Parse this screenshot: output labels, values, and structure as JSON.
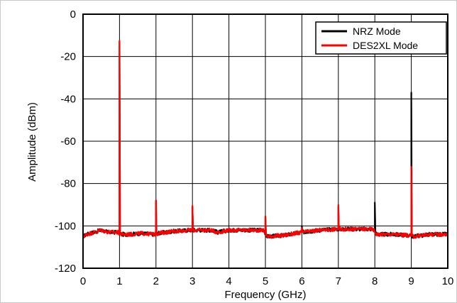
{
  "chart_data": {
    "type": "line",
    "xlabel": "Frequency (GHz)",
    "ylabel": "Amplitude (dBm)",
    "xlim": [
      0,
      10
    ],
    "ylim": [
      -120,
      0
    ],
    "x_ticks": [
      "0",
      "1",
      "2",
      "3",
      "4",
      "5",
      "6",
      "7",
      "8",
      "9",
      "10"
    ],
    "y_ticks": [
      "0",
      "-20",
      "-40",
      "-60",
      "-80",
      "-100",
      "-120"
    ],
    "grid": true,
    "legend_position": "top-right",
    "noise_floor": [
      [
        0,
        -105
      ],
      [
        0.1,
        -104
      ],
      [
        0.3,
        -103
      ],
      [
        0.5,
        -102
      ],
      [
        0.7,
        -103
      ],
      [
        0.95,
        -103
      ],
      [
        1.05,
        -104
      ],
      [
        1.3,
        -104
      ],
      [
        1.6,
        -103.5
      ],
      [
        1.95,
        -104
      ],
      [
        2.05,
        -103.5
      ],
      [
        2.5,
        -102.5
      ],
      [
        2.95,
        -102
      ],
      [
        3.05,
        -102
      ],
      [
        3.5,
        -102
      ],
      [
        3.7,
        -103
      ],
      [
        4,
        -102
      ],
      [
        4.5,
        -102
      ],
      [
        4.95,
        -102
      ],
      [
        5.05,
        -105
      ],
      [
        5.5,
        -104.5
      ],
      [
        6,
        -103
      ],
      [
        6.5,
        -102
      ],
      [
        6.95,
        -101.5
      ],
      [
        7.05,
        -101.5
      ],
      [
        7.5,
        -101.5
      ],
      [
        7.95,
        -101.5
      ],
      [
        8.05,
        -104
      ],
      [
        8.5,
        -104
      ],
      [
        8.95,
        -104.5
      ],
      [
        9.05,
        -105
      ],
      [
        9.5,
        -104
      ],
      [
        10,
        -104
      ]
    ],
    "series": [
      {
        "name": "NRZ Mode",
        "color": "#000000",
        "spurs": [
          [
            1,
            -13
          ],
          [
            2,
            -88
          ],
          [
            3,
            -91
          ],
          [
            5,
            -96
          ],
          [
            6,
            -100
          ],
          [
            7,
            -91
          ],
          [
            8,
            -89
          ],
          [
            9,
            -37
          ]
        ]
      },
      {
        "name": "DES2XL Mode",
        "color": "#ff0000",
        "spurs": [
          [
            1,
            -12.5
          ],
          [
            2,
            -88
          ],
          [
            3,
            -90.5
          ],
          [
            5,
            -95.5
          ],
          [
            6,
            -101
          ],
          [
            7,
            -90
          ],
          [
            9,
            -72
          ]
        ]
      }
    ]
  }
}
